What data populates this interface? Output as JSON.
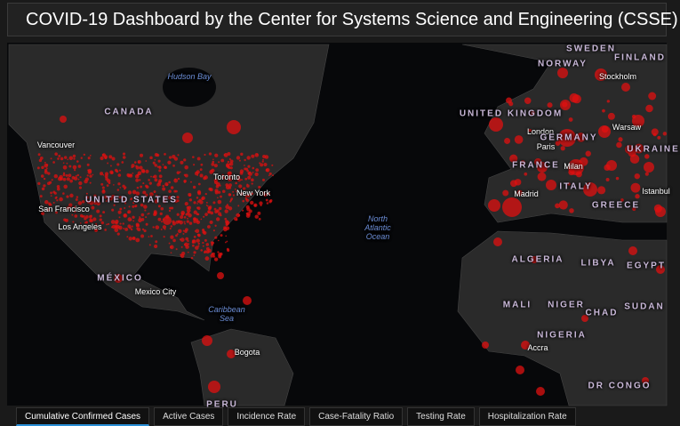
{
  "header": {
    "title": "COVID-19 Dashboard by the Center for Systems Science and Engineering (CSSE)"
  },
  "map": {
    "labels": [
      {
        "text": "Hudson Bay",
        "kind": "water"
      },
      {
        "text": "CANADA",
        "kind": "country"
      },
      {
        "text": "Vancouver",
        "kind": "city"
      },
      {
        "text": "UNITED STATES",
        "kind": "country"
      },
      {
        "text": "San Francisco",
        "kind": "city"
      },
      {
        "text": "Los Angeles",
        "kind": "city"
      },
      {
        "text": "Toronto",
        "kind": "city"
      },
      {
        "text": "New York",
        "kind": "city"
      },
      {
        "text": "North Atlantic Ocean",
        "kind": "water"
      },
      {
        "text": "MÉXICO",
        "kind": "country"
      },
      {
        "text": "Mexico City",
        "kind": "city"
      },
      {
        "text": "Caribbean Sea",
        "kind": "water"
      },
      {
        "text": "Bogota",
        "kind": "city"
      },
      {
        "text": "PERU",
        "kind": "country"
      },
      {
        "text": "SWEDEN",
        "kind": "country"
      },
      {
        "text": "FINLAND",
        "kind": "country"
      },
      {
        "text": "NORWAY",
        "kind": "country"
      },
      {
        "text": "Stockholm",
        "kind": "city"
      },
      {
        "text": "UNITED KINGDOM",
        "kind": "country"
      },
      {
        "text": "London",
        "kind": "city"
      },
      {
        "text": "Warsaw",
        "kind": "city"
      },
      {
        "text": "GERMANY",
        "kind": "country"
      },
      {
        "text": "UKRAINE",
        "kind": "country"
      },
      {
        "text": "Paris",
        "kind": "city"
      },
      {
        "text": "FRANCE",
        "kind": "country"
      },
      {
        "text": "Milan",
        "kind": "city"
      },
      {
        "text": "Madrid",
        "kind": "city"
      },
      {
        "text": "ITALY",
        "kind": "country"
      },
      {
        "text": "GREECE",
        "kind": "country"
      },
      {
        "text": "Istanbul",
        "kind": "city"
      },
      {
        "text": "ALGERIA",
        "kind": "country"
      },
      {
        "text": "LIBYA",
        "kind": "country"
      },
      {
        "text": "EGYPT",
        "kind": "country"
      },
      {
        "text": "MALI",
        "kind": "country"
      },
      {
        "text": "NIGER",
        "kind": "country"
      },
      {
        "text": "CHAD",
        "kind": "country"
      },
      {
        "text": "SUDAN",
        "kind": "country"
      },
      {
        "text": "NIGERIA",
        "kind": "country"
      },
      {
        "text": "Accra",
        "kind": "city"
      },
      {
        "text": "DR CONGO",
        "kind": "country"
      }
    ]
  },
  "tabs": [
    {
      "label": "Cumulative Confirmed Cases",
      "active": true
    },
    {
      "label": "Active Cases",
      "active": false
    },
    {
      "label": "Incidence Rate",
      "active": false
    },
    {
      "label": "Case-Fatality Ratio",
      "active": false
    },
    {
      "label": "Testing Rate",
      "active": false
    },
    {
      "label": "Hospitalization Rate",
      "active": false
    }
  ]
}
